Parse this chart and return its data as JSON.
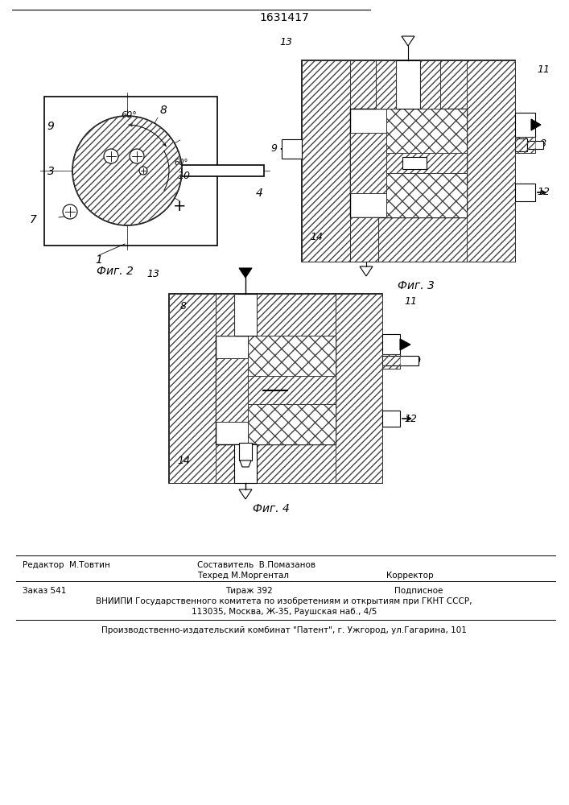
{
  "title": "1631417",
  "bg_color": "#f5f5f0",
  "fig2_caption": "Фиг. 2",
  "fig3_caption": "Фиг. 3",
  "fig4_caption": "Фиг. 4",
  "editor_line": "Редактор  М.Товтин",
  "compiler_line": "Составитель  В.Помазанов",
  "techred_line": "Техред М.Моргентал",
  "corrector_line": "Корректор",
  "order_line": "Заказ 541",
  "tirazh_line": "Тираж 392",
  "podpisnoe_line": "Подписное",
  "vniipи_line1": "ВНИИПИ Государственного комитета по изобретениям и открытиям при ГКНТ СССР,",
  "vniipи_line2": "113035, Москва, Ж-35, Раушская наб., 4/5",
  "patent_line": "Производственно-издательский комбинат \"Патент\", г. Ужгород, ул.Гагарина, 101"
}
